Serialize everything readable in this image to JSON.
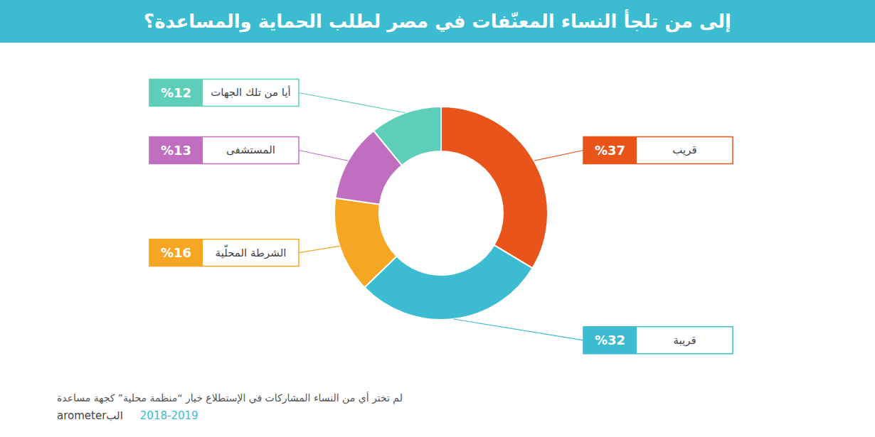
{
  "chart_data": {
    "type": "pie",
    "title": "إلى من تلجأ النساء المعنّفات في مصر لطلب الحماية والمساعدة؟",
    "categories": [
      "قريب",
      "قريبة",
      "الشرطة المحلّية",
      "المستشفى",
      "أيا من تلك الجهات"
    ],
    "values": [
      37,
      32,
      16,
      13,
      12
    ],
    "value_labels": [
      "%37",
      "%32",
      "%16",
      "%13",
      "%12"
    ],
    "colors": [
      "#E8541A",
      "#3BBCD0",
      "#F5A623",
      "#C06EC0",
      "#5DCFB8"
    ],
    "data_labels": true,
    "annotations": [
      "لم تختر أي من النساء المشاركات في الإستطلاع خيار “منظمة محلية” كجهة مساعدة",
      "2018-2019",
      "البarometer"
    ]
  }
}
